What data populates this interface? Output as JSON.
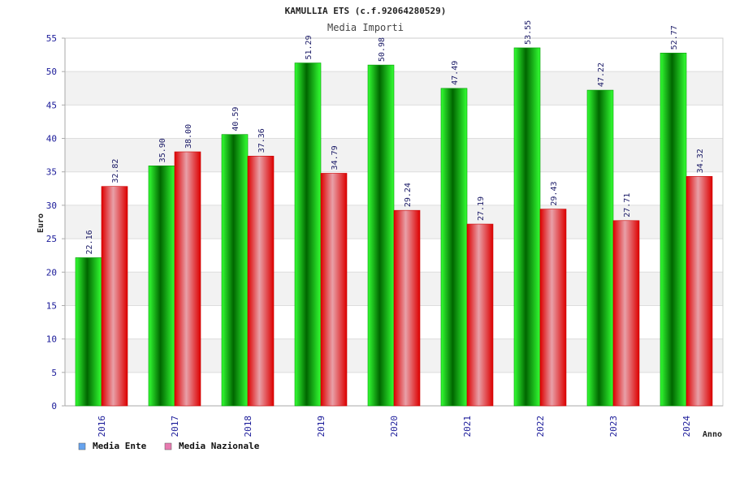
{
  "chart_data": {
    "type": "bar",
    "title": "KAMULLIA ETS (c.f.92064280529)",
    "subtitle": "Media Importi",
    "xlabel": "Anno",
    "ylabel": "Euro",
    "ylim": [
      0,
      55
    ],
    "yticks": [
      0,
      5,
      10,
      15,
      20,
      25,
      30,
      35,
      40,
      45,
      50,
      55
    ],
    "categories": [
      "2016",
      "2017",
      "2018",
      "2019",
      "2020",
      "2021",
      "2022",
      "2023",
      "2024"
    ],
    "series": [
      {
        "name": "Media Ente",
        "values": [
          22.16,
          35.9,
          40.59,
          51.29,
          50.98,
          47.49,
          53.55,
          47.22,
          52.77
        ],
        "labels": [
          "22.16",
          "35.90",
          "40.59",
          "51.29",
          "50.98",
          "47.49",
          "53.55",
          "47.22",
          "52.77"
        ],
        "color": "#00cc00",
        "dark": "#006600",
        "light": "#33ff33"
      },
      {
        "name": "Media Nazionale",
        "values": [
          32.82,
          38.0,
          37.36,
          34.79,
          29.24,
          27.19,
          29.43,
          27.71,
          34.32
        ],
        "labels": [
          "32.82",
          "38.00",
          "37.36",
          "34.79",
          "29.24",
          "27.19",
          "29.43",
          "27.71",
          "34.32"
        ],
        "color": "#ff0000",
        "dark": "#dd0000",
        "light": "#e8a0a8"
      }
    ],
    "legend": [
      {
        "label": "Media Ente",
        "color": "#66a3ee"
      },
      {
        "label": "Media Nazionale",
        "color": "#e87ab0"
      }
    ],
    "grid": true,
    "legend_position": "bottom-left"
  }
}
